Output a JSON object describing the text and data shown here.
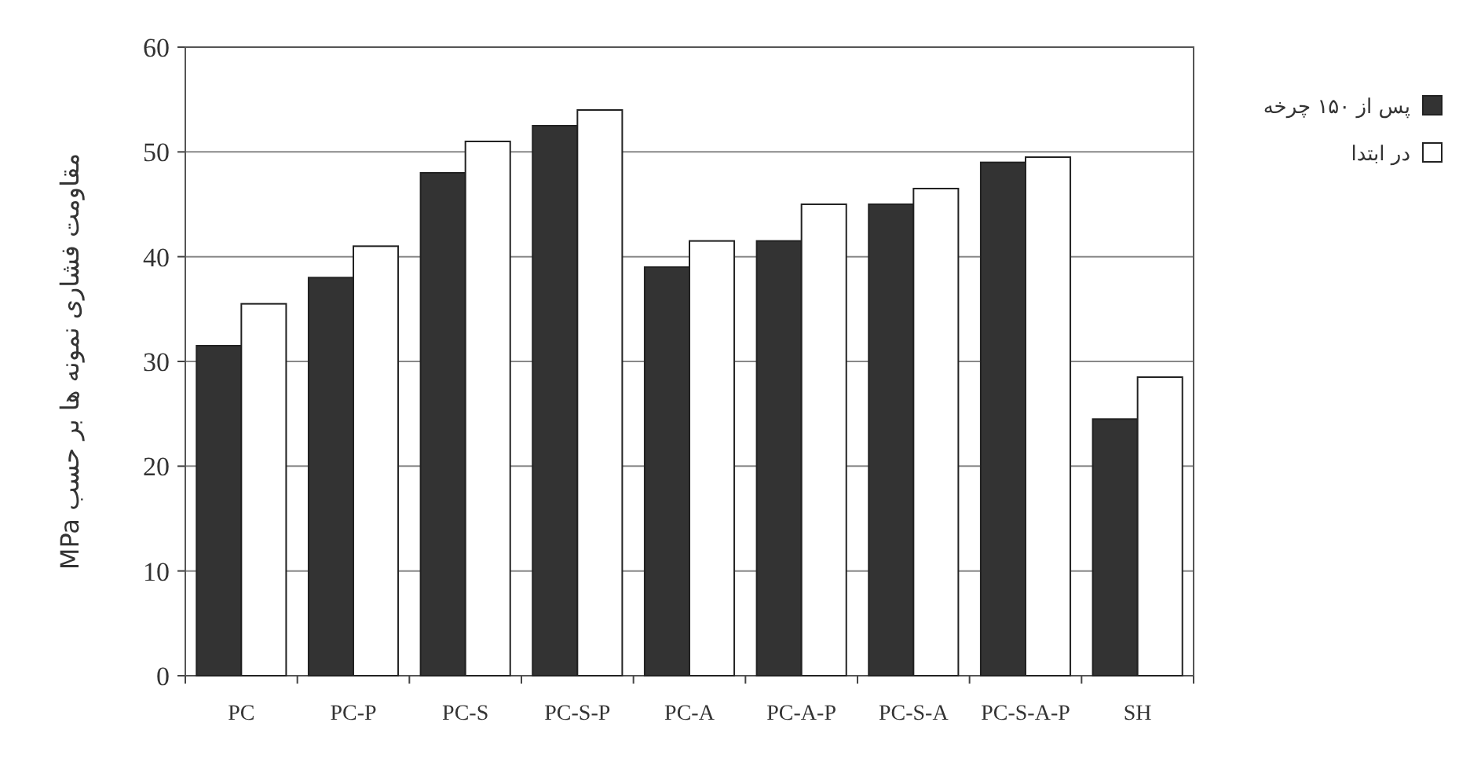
{
  "chart_data": {
    "type": "bar",
    "ylabel": "مقاومت فشاری نمونه ها بر حسب MPa",
    "categories": [
      "PC",
      "PC-P",
      "PC-S",
      "PC-S-P",
      "PC-A",
      "PC-A-P",
      "PC-S-A",
      "PC-S-A-P",
      "SH"
    ],
    "series": [
      {
        "name": "پس از ۱۵۰ چرخه",
        "color": "#333333",
        "values": [
          31.5,
          38,
          48,
          52.5,
          39,
          41.5,
          45,
          49,
          24.5
        ]
      },
      {
        "name": "در ابتدا",
        "color": "#ffffff",
        "values": [
          35.5,
          41,
          51,
          54,
          41.5,
          45,
          46.5,
          49.5,
          28.5
        ]
      }
    ],
    "ylim": [
      0,
      60
    ],
    "yticks": [
      0,
      10,
      20,
      30,
      40,
      50,
      60
    ],
    "grid": "y",
    "legend": "right"
  }
}
